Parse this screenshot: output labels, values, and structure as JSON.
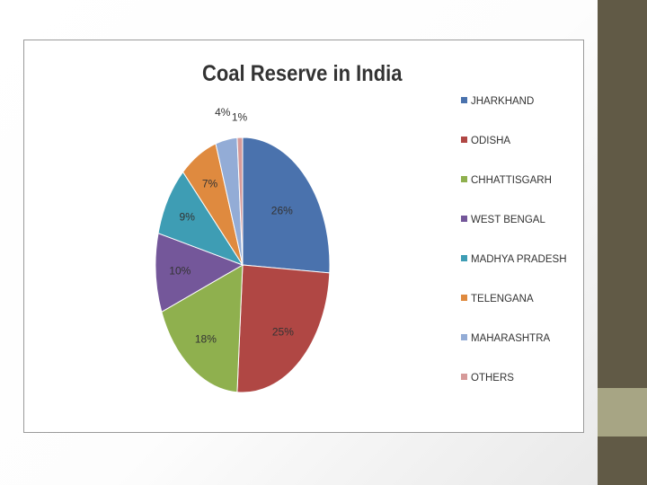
{
  "chart_data": {
    "type": "pie",
    "title": "Coal Reserve in India",
    "categories": [
      "JHARKHAND",
      "ODISHA",
      "CHHATTISGARH",
      "WEST BENGAL",
      "MADHYA PRADESH",
      "TELENGANA",
      "MAHARASHTRA",
      "OTHERS"
    ],
    "values": [
      26,
      25,
      18,
      10,
      9,
      7,
      4,
      1
    ],
    "labels": [
      "26%",
      "25%",
      "18%",
      "10%",
      "9%",
      "7%",
      "4%",
      "1%"
    ],
    "colors": [
      "#4a72ad",
      "#b04744",
      "#8fb04e",
      "#74579a",
      "#3e9db4",
      "#df8a3f",
      "#93acd6",
      "#d69a99"
    ],
    "legend_position": "right"
  },
  "slide": {
    "background": "#ffffff",
    "band_color": "#615a46",
    "accent_color": "#a7a584"
  }
}
